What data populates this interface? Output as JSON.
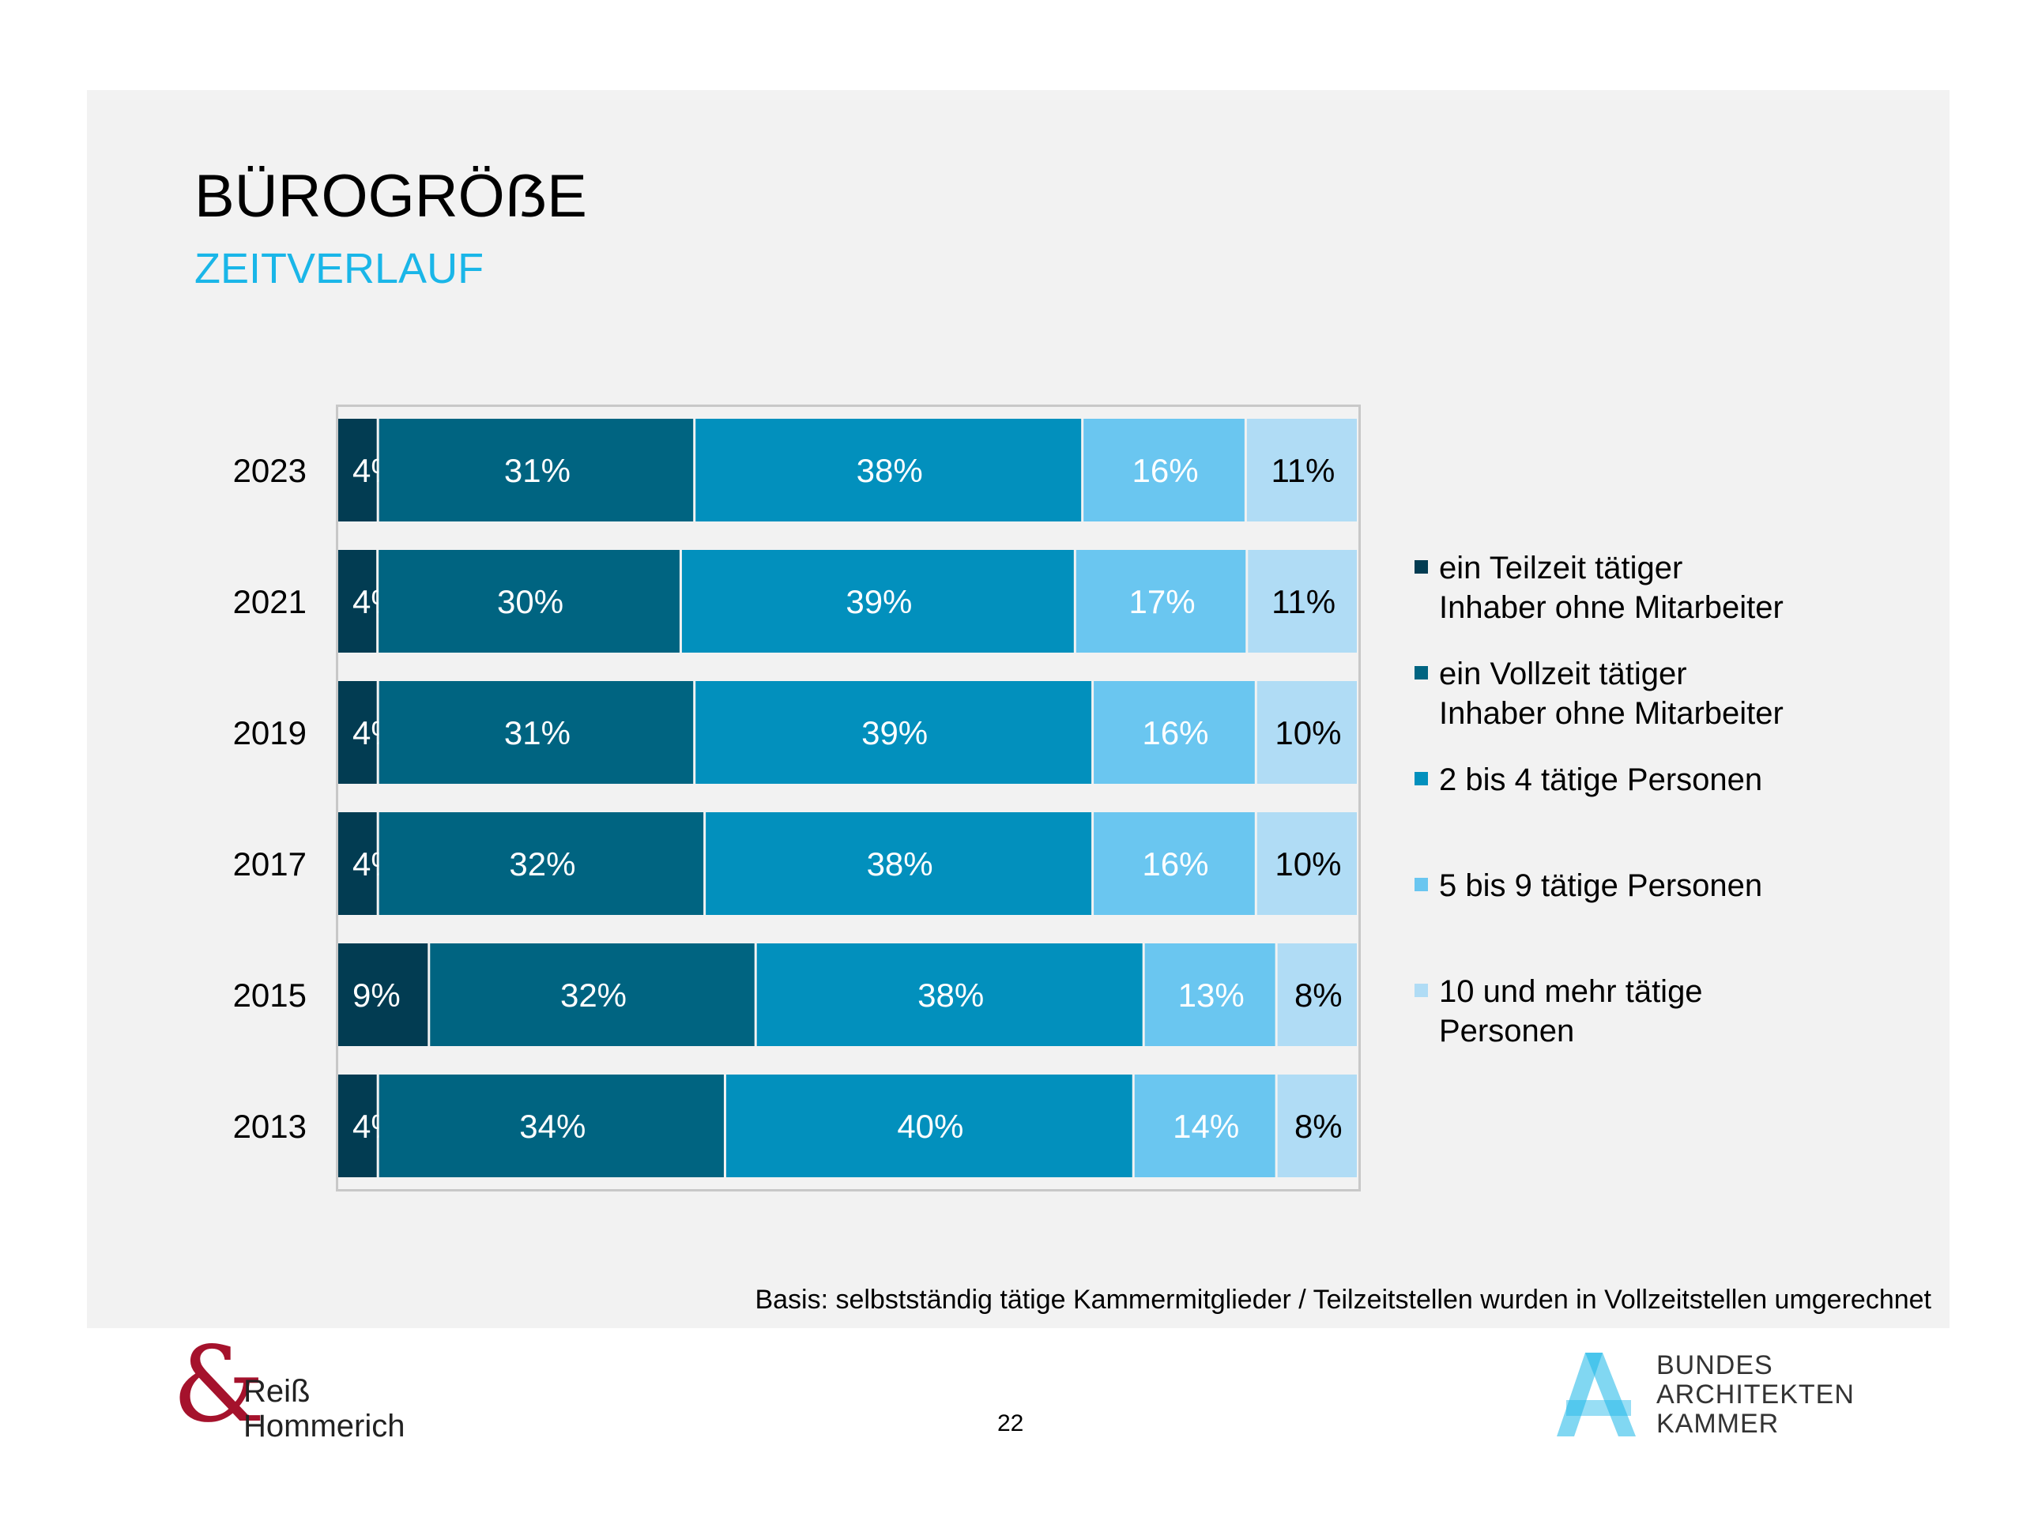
{
  "header": {
    "title": "BÜROGRÖẞE",
    "subtitle": "ZEITVERLAUF"
  },
  "colors": {
    "panel_background": "#f2f2f2",
    "subtitle": "#1ab6e8",
    "logo_red": "#a5122c",
    "logo_blue": "#1ab6e8"
  },
  "chart_data": {
    "type": "bar",
    "orientation": "horizontal",
    "stacked": true,
    "normalized": true,
    "title": "BÜROGRÖẞE",
    "subtitle": "ZEITVERLAUF",
    "xlabel": "",
    "ylabel": "",
    "xlim": [
      0,
      100
    ],
    "unit": "%",
    "categories": [
      "2023",
      "2021",
      "2019",
      "2017",
      "2015",
      "2013"
    ],
    "series": [
      {
        "name": "ein Teilzeit tätiger Inhaber ohne Mitarbeiter",
        "legend_label": "ein Teilzeit tätiger\nInhaber ohne Mitarbeiter",
        "color": "#023c52",
        "label_color": "#ffffff",
        "values": [
          4,
          4,
          4,
          4,
          9,
          4
        ]
      },
      {
        "name": "ein Vollzeit tätiger Inhaber ohne Mitarbeiter",
        "legend_label": "ein Vollzeit tätiger\nInhaber ohne Mitarbeiter",
        "color": "#006481",
        "label_color": "#ffffff",
        "values": [
          31,
          30,
          31,
          32,
          32,
          34
        ]
      },
      {
        "name": "2 bis 4 tätige Personen",
        "legend_label": "2 bis 4 tätige Personen",
        "color": "#0290bd",
        "label_color": "#ffffff",
        "values": [
          38,
          39,
          39,
          38,
          38,
          40
        ]
      },
      {
        "name": "5 bis 9 tätige Personen",
        "legend_label": "5 bis 9 tätige Personen",
        "color": "#6ac6f0",
        "label_color": "#ffffff",
        "values": [
          16,
          17,
          16,
          16,
          13,
          14
        ]
      },
      {
        "name": "10 und mehr tätige Personen",
        "legend_label": "10 und mehr tätige\nPersonen",
        "color": "#b0dcf5",
        "label_color": "#000000",
        "values": [
          11,
          11,
          10,
          10,
          8,
          8
        ]
      }
    ],
    "data_labels": true,
    "legend_position": "right",
    "grid": false
  },
  "footnote": "Basis: selbstständig tätige Kammermitglieder / Teilzeitstellen wurden in Vollzeitstellen umgerechnet",
  "page_number": "22",
  "logos": {
    "left": {
      "symbol": "&",
      "line1": "Reiß",
      "line2": "Hommerich"
    },
    "right": {
      "line1": "BUNDES",
      "line2": "ARCHITEKTEN",
      "line3": "KAMMER"
    }
  }
}
